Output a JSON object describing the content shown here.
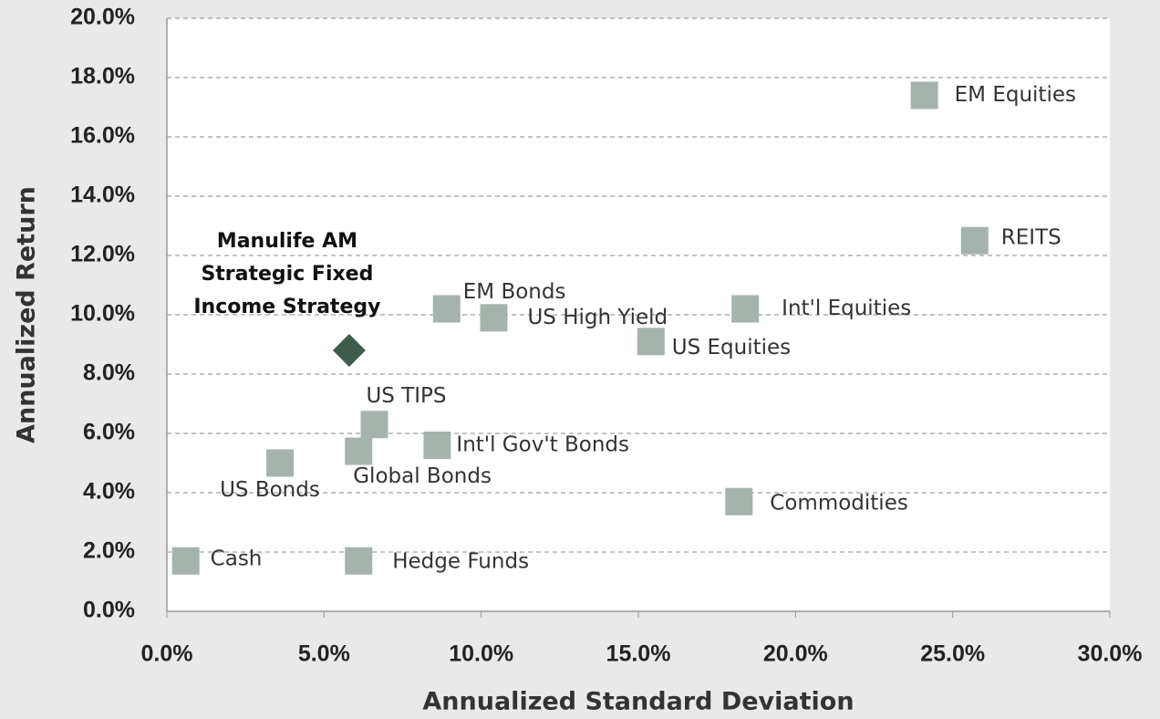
{
  "chart_data": {
    "type": "scatter",
    "y_label": "Annualized Return",
    "x_label": "Annualized Standard Deviation",
    "xlim": [
      0,
      30
    ],
    "xticks": [
      {
        "value": 0,
        "label": "0.0%"
      },
      {
        "value": 5,
        "label": "5.0%"
      },
      {
        "value": 10,
        "label": "10.0%"
      },
      {
        "value": 15,
        "label": "15.0%"
      },
      {
        "value": 20,
        "label": "20.0%"
      },
      {
        "value": 25,
        "label": "25.0%"
      },
      {
        "value": 30,
        "label": "30.0%"
      }
    ],
    "ylim": [
      0,
      20
    ],
    "yticks": [
      {
        "value": 0,
        "label": "0.0%"
      },
      {
        "value": 2,
        "label": "2.0%"
      },
      {
        "value": 4,
        "label": "4.0%"
      },
      {
        "value": 6,
        "label": "6.0%"
      },
      {
        "value": 8,
        "label": "8.0%"
      },
      {
        "value": 10,
        "label": "10.0%"
      },
      {
        "value": 12,
        "label": "12.0%"
      },
      {
        "value": 14,
        "label": "14.0%"
      },
      {
        "value": 16,
        "label": "16.0%"
      },
      {
        "value": 18,
        "label": "18.0%"
      },
      {
        "value": 20,
        "label": "20.0%"
      }
    ],
    "grid": true,
    "color": "#a6b3ac",
    "points": [
      {
        "label": "EM Equities",
        "x": 24.1,
        "y": 17.4
      },
      {
        "label": "REITS",
        "x": 25.7,
        "y": 12.5
      },
      {
        "label": "Int'l Equities",
        "x": 18.4,
        "y": 10.2
      },
      {
        "label": "US Equities",
        "x": 15.4,
        "y": 9.1
      },
      {
        "label": "EM Bonds",
        "x": 8.9,
        "y": 10.2
      },
      {
        "label": "US High Yield",
        "x": 10.4,
        "y": 9.9
      },
      {
        "label": "US TIPS",
        "x": 6.6,
        "y": 6.3
      },
      {
        "label": "Global Bonds",
        "x": 6.1,
        "y": 5.4
      },
      {
        "label": "Int'l Gov't Bonds",
        "x": 8.6,
        "y": 5.6
      },
      {
        "label": "US Bonds",
        "x": 3.6,
        "y": 5.0
      },
      {
        "label": "Commodities",
        "x": 18.2,
        "y": 3.7
      },
      {
        "label": "Cash",
        "x": 0.6,
        "y": 1.7
      },
      {
        "label": "Hedge Funds",
        "x": 6.1,
        "y": 1.7
      }
    ],
    "highlight": {
      "label_lines": [
        "Manulife AM",
        "Strategic Fixed",
        "Income Strategy"
      ],
      "x": 5.8,
      "y": 8.8,
      "color": "#3e5c4c"
    }
  }
}
